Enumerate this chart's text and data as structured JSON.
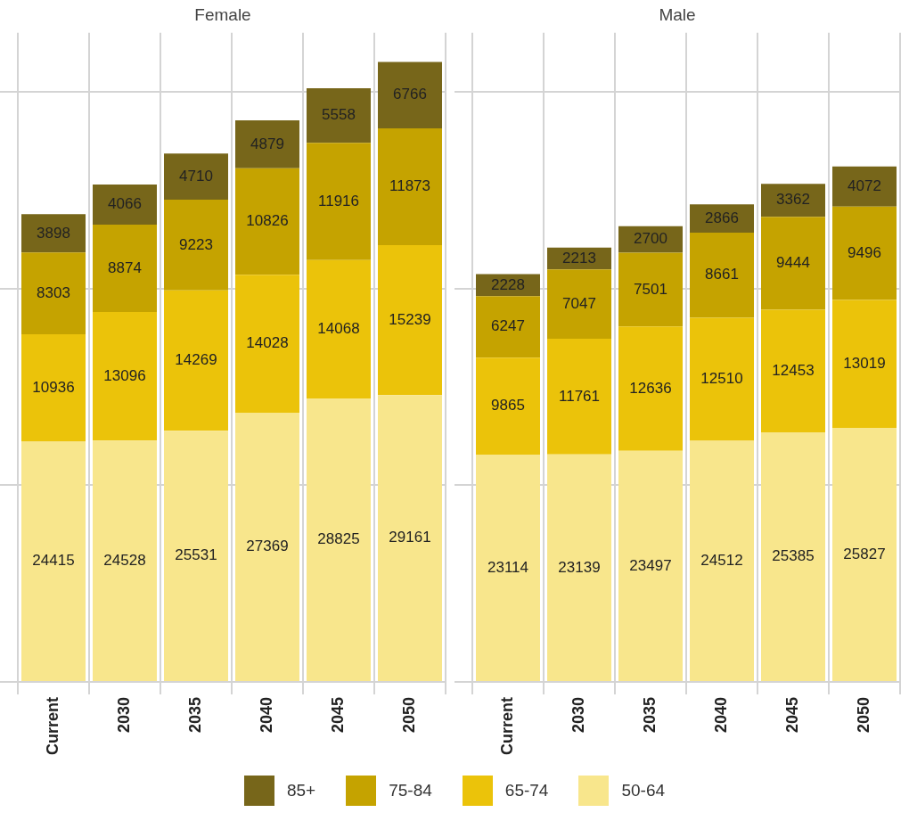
{
  "chart_data": [
    {
      "type": "bar",
      "title": "Female",
      "stacked": true,
      "data_labels": true,
      "grid": true,
      "tick_labels": "x",
      "legend": "bottom",
      "ylim": [
        0,
        66000
      ],
      "yticks": [
        {
          "value": 0,
          "label": null
        },
        {
          "value": 20000,
          "label": null
        },
        {
          "value": 40000,
          "label": null
        },
        {
          "value": 60000,
          "label": null
        }
      ],
      "categories": [
        "Current",
        "2030",
        "2035",
        "2040",
        "2045",
        "2050"
      ],
      "series": [
        {
          "name": "50-64",
          "color": "#f8e68c",
          "values": [
            24415,
            24528,
            25531,
            27369,
            28825,
            29161
          ]
        },
        {
          "name": "65-74",
          "color": "#ebc30a",
          "values": [
            10936,
            13096,
            14269,
            14028,
            14068,
            15239
          ]
        },
        {
          "name": "75-84",
          "color": "#c5a300",
          "values": [
            8303,
            8874,
            9223,
            10826,
            11916,
            11873
          ]
        },
        {
          "name": "85+",
          "color": "#77661a",
          "values": [
            3898,
            4066,
            4710,
            4879,
            5558,
            6766
          ]
        }
      ]
    },
    {
      "type": "bar",
      "title": "Male",
      "stacked": true,
      "data_labels": true,
      "grid": true,
      "tick_labels": "x",
      "legend": "bottom",
      "ylim": [
        0,
        66000
      ],
      "yticks": [
        {
          "value": 0,
          "label": null
        },
        {
          "value": 20000,
          "label": null
        },
        {
          "value": 40000,
          "label": null
        },
        {
          "value": 60000,
          "label": null
        }
      ],
      "categories": [
        "Current",
        "2030",
        "2035",
        "2040",
        "2045",
        "2050"
      ],
      "series": [
        {
          "name": "50-64",
          "color": "#f8e68c",
          "values": [
            23114,
            23139,
            23497,
            24512,
            25385,
            25827
          ]
        },
        {
          "name": "65-74",
          "color": "#ebc30a",
          "values": [
            9865,
            11761,
            12636,
            12510,
            12453,
            13019
          ]
        },
        {
          "name": "75-84",
          "color": "#c5a300",
          "values": [
            6247,
            7047,
            7501,
            8661,
            9444,
            9496
          ]
        },
        {
          "name": "85+",
          "color": "#77661a",
          "values": [
            2228,
            2213,
            2700,
            2866,
            3362,
            4072
          ]
        }
      ]
    }
  ]
}
